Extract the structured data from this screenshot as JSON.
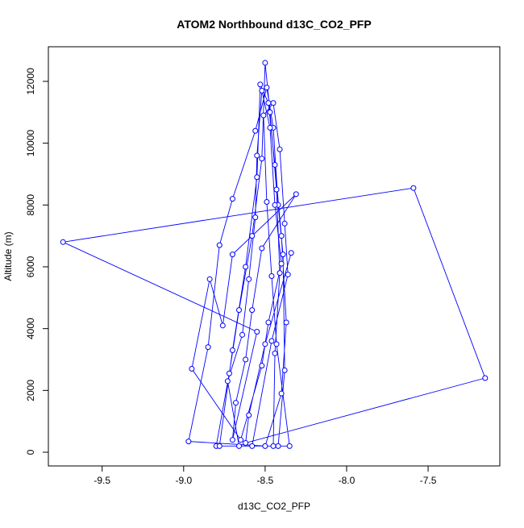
{
  "chart_data": {
    "type": "line",
    "title": "ATOM2 Northbound d13C_CO2_PFP",
    "x_label": "d13C_CO2_PFP",
    "y_label": "Altitude (m)",
    "color": "#0000ff",
    "markers": true,
    "x": [
      -8.8,
      -8.72,
      -8.66,
      -8.58,
      -8.52,
      -8.5,
      -8.47,
      -8.43,
      -8.41,
      -8.44,
      -8.45,
      -8.78,
      -8.7,
      -8.62,
      -8.55,
      -8.53,
      -8.48,
      -8.44,
      -8.4,
      -8.37,
      -8.4,
      -8.5,
      -8.97,
      -8.85,
      -8.78,
      -8.7,
      -8.56,
      -8.49,
      -8.45,
      -8.42,
      -8.39,
      -8.38,
      -8.42,
      -8.35,
      -8.43,
      -8.46,
      -8.49,
      -8.51,
      -8.45,
      -8.41,
      -8.38,
      -8.36,
      -8.46,
      -8.58,
      -8.66,
      -8.73,
      -8.64,
      -8.6,
      -8.56,
      -8.55,
      -8.52,
      -8.47,
      -8.44,
      -8.4,
      -8.48,
      -8.52,
      -8.65,
      -8.95,
      -8.84,
      -8.76,
      -8.7,
      -8.31,
      -8.52,
      -8.58,
      -8.62,
      -8.68,
      -8.7,
      -8.55,
      -9.74,
      -7.59,
      -7.15,
      -8.62,
      -8.6,
      -8.5,
      -8.34
    ],
    "y": [
      200,
      2550,
      4600,
      7000,
      9500,
      12600,
      11000,
      8500,
      5800,
      3200,
      200,
      200,
      3300,
      6000,
      8900,
      11900,
      11300,
      9300,
      7000,
      4200,
      1900,
      200,
      350,
      3400,
      6700,
      8200,
      10400,
      11800,
      10500,
      8000,
      6400,
      2650,
      200,
      200,
      3500,
      5700,
      8100,
      10900,
      11300,
      9800,
      7400,
      5750,
      3600,
      200,
      200,
      2300,
      3800,
      5600,
      7600,
      9600,
      11700,
      10500,
      8000,
      6100,
      4200,
      2800,
      400,
      2700,
      5600,
      4100,
      6400,
      8350,
      6600,
      4600,
      3000,
      1600,
      400,
      3900,
      6800,
      8550,
      2400,
      300,
      1200,
      3500,
      6450
    ],
    "xlim": [
      -9.83,
      -7.06
    ],
    "ylim": [
      -443,
      13120
    ],
    "xticks": [
      -9.5,
      {
        "value": -9.0,
        "label": "-9.0"
      },
      -8.5,
      {
        "value": -8.0,
        "label": "-8.0"
      },
      -7.5
    ],
    "yticks": [
      0,
      2000,
      4000,
      6000,
      8000,
      10000,
      12000
    ]
  }
}
